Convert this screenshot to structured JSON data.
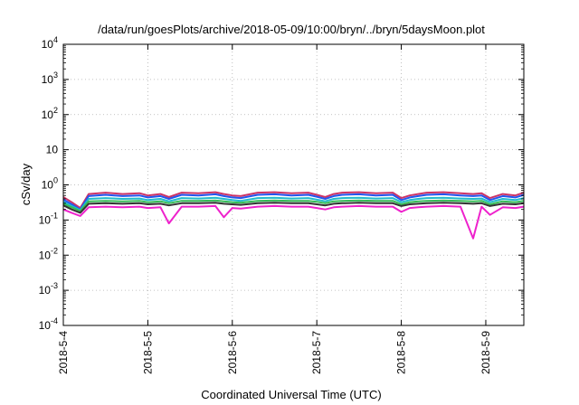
{
  "chart_data": {
    "type": "line",
    "title": "/data/run/goesPlots/archive/2018-05-09/10:00/bryn/../bryn/5daysMoon.plot",
    "xlabel": "Coordinated Universal Time (UTC)",
    "ylabel": "cSv/day",
    "y_scale": "log",
    "ylim": [
      0.0001,
      10000
    ],
    "xlim": [
      0,
      5.45
    ],
    "grid": true,
    "x_ticks": [
      {
        "x": 0,
        "label": "2018-5-4"
      },
      {
        "x": 1,
        "label": "2018-5-5"
      },
      {
        "x": 2,
        "label": "2018-5-6"
      },
      {
        "x": 3,
        "label": "2018-5-7"
      },
      {
        "x": 4,
        "label": "2018-5-8"
      },
      {
        "x": 5,
        "label": "2018-5-9"
      }
    ],
    "y_ticks": [
      {
        "y": 0.0001,
        "base": "10",
        "exp": "-4"
      },
      {
        "y": 0.001,
        "base": "10",
        "exp": "-3"
      },
      {
        "y": 0.01,
        "base": "10",
        "exp": "-2"
      },
      {
        "y": 0.1,
        "base": "10",
        "exp": "-1"
      },
      {
        "y": 1,
        "base": "10",
        "exp": "0"
      },
      {
        "y": 10,
        "base": "10",
        "exp": ""
      },
      {
        "y": 100,
        "base": "10",
        "exp": "2"
      },
      {
        "y": 1000,
        "base": "10",
        "exp": "3"
      },
      {
        "y": 10000,
        "base": "10",
        "exp": "4"
      }
    ],
    "x": [
      0,
      0.1,
      0.2,
      0.3,
      0.5,
      0.7,
      0.9,
      1.0,
      1.15,
      1.25,
      1.4,
      1.6,
      1.8,
      1.9,
      2.0,
      2.1,
      2.3,
      2.5,
      2.7,
      2.9,
      3.0,
      3.1,
      3.2,
      3.3,
      3.5,
      3.7,
      3.9,
      4.0,
      4.1,
      4.2,
      4.3,
      4.5,
      4.7,
      4.85,
      4.95,
      5.05,
      5.2,
      5.35,
      5.45
    ],
    "series": [
      {
        "color": "#cc3366",
        "values": [
          0.45,
          0.32,
          0.22,
          0.55,
          0.6,
          0.55,
          0.58,
          0.5,
          0.55,
          0.45,
          0.6,
          0.58,
          0.62,
          0.55,
          0.5,
          0.48,
          0.6,
          0.62,
          0.58,
          0.6,
          0.52,
          0.45,
          0.55,
          0.6,
          0.62,
          0.58,
          0.6,
          0.42,
          0.5,
          0.55,
          0.6,
          0.62,
          0.58,
          0.55,
          0.58,
          0.42,
          0.55,
          0.5,
          0.6
        ]
      },
      {
        "color": "#2255ee",
        "values": [
          0.38,
          0.28,
          0.2,
          0.48,
          0.52,
          0.48,
          0.5,
          0.44,
          0.48,
          0.4,
          0.52,
          0.5,
          0.54,
          0.48,
          0.44,
          0.42,
          0.52,
          0.54,
          0.5,
          0.52,
          0.46,
          0.4,
          0.48,
          0.52,
          0.54,
          0.5,
          0.52,
          0.37,
          0.44,
          0.48,
          0.52,
          0.54,
          0.5,
          0.48,
          0.5,
          0.37,
          0.48,
          0.44,
          0.52
        ]
      },
      {
        "color": "#22bbcc",
        "values": [
          0.33,
          0.25,
          0.19,
          0.4,
          0.42,
          0.4,
          0.41,
          0.37,
          0.4,
          0.34,
          0.42,
          0.41,
          0.43,
          0.4,
          0.37,
          0.35,
          0.42,
          0.43,
          0.41,
          0.42,
          0.38,
          0.34,
          0.4,
          0.42,
          0.43,
          0.41,
          0.42,
          0.32,
          0.37,
          0.4,
          0.42,
          0.43,
          0.41,
          0.4,
          0.41,
          0.32,
          0.4,
          0.37,
          0.42
        ]
      },
      {
        "color": "#33bb55",
        "values": [
          0.29,
          0.23,
          0.18,
          0.34,
          0.35,
          0.34,
          0.35,
          0.32,
          0.34,
          0.3,
          0.35,
          0.35,
          0.36,
          0.34,
          0.32,
          0.31,
          0.35,
          0.36,
          0.35,
          0.35,
          0.33,
          0.3,
          0.34,
          0.35,
          0.36,
          0.35,
          0.35,
          0.28,
          0.32,
          0.34,
          0.35,
          0.36,
          0.35,
          0.34,
          0.35,
          0.28,
          0.34,
          0.32,
          0.35
        ]
      },
      {
        "color": "#333333",
        "values": [
          0.26,
          0.2,
          0.16,
          0.29,
          0.3,
          0.29,
          0.3,
          0.28,
          0.29,
          0.26,
          0.3,
          0.3,
          0.31,
          0.29,
          0.28,
          0.27,
          0.3,
          0.31,
          0.3,
          0.3,
          0.28,
          0.26,
          0.29,
          0.3,
          0.31,
          0.3,
          0.3,
          0.25,
          0.28,
          0.29,
          0.3,
          0.31,
          0.3,
          0.29,
          0.3,
          0.25,
          0.29,
          0.28,
          0.3
        ]
      },
      {
        "color": "#ee22cc",
        "values": [
          0.2,
          0.16,
          0.13,
          0.23,
          0.24,
          0.23,
          0.24,
          0.22,
          0.23,
          0.08,
          0.24,
          0.24,
          0.25,
          0.12,
          0.22,
          0.21,
          0.24,
          0.25,
          0.24,
          0.24,
          0.22,
          0.2,
          0.23,
          0.24,
          0.25,
          0.24,
          0.24,
          0.17,
          0.22,
          0.23,
          0.24,
          0.25,
          0.24,
          0.03,
          0.24,
          0.14,
          0.23,
          0.22,
          0.24
        ]
      }
    ]
  }
}
